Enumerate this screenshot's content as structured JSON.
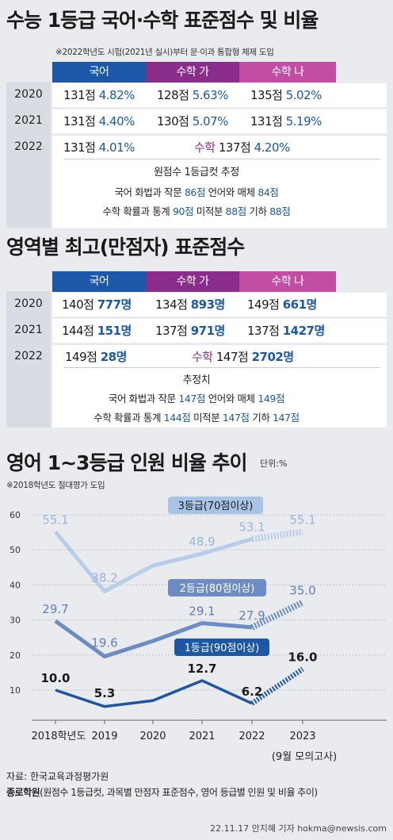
{
  "section1": {
    "title": "수능 1등급 국어·수학 표준점수 및 비율",
    "note": "※2022학년도 시험(2021년 실시)부터 문·이과 통합형 체제 도입",
    "headers": [
      "국어",
      "수학 가",
      "수학 나"
    ],
    "rows": [
      {
        "year": "2020",
        "cells": [
          [
            "131점",
            "4.82%"
          ],
          [
            "128점",
            "5.63%"
          ],
          [
            "135점",
            "5.02%"
          ]
        ]
      },
      {
        "year": "2021",
        "cells": [
          [
            "131점",
            "4.40%"
          ],
          [
            "130점",
            "5.07%"
          ],
          [
            "131점",
            "5.19%"
          ]
        ]
      }
    ],
    "row2022": {
      "year": "2022",
      "kor_score": "131점",
      "kor_pct": "4.01%",
      "math_label": "수학",
      "math_score": "137점",
      "math_pct": "4.20%"
    },
    "estimate": {
      "title": "원점수 1등급컷 추정",
      "line1": {
        "a": "국어 화법과 작문 ",
        "b": "86점",
        "c": " 언어와 매체 ",
        "d": "84점"
      },
      "line2": {
        "a": "수학 확률과 통계 ",
        "b": "90점",
        "c": " 미적분 ",
        "d": "88점",
        "e": " 기하 ",
        "f": "88점"
      }
    }
  },
  "section2": {
    "title": "영역별 최고(만점자) 표준점수",
    "headers": [
      "국어",
      "수학 가",
      "수학 나"
    ],
    "rows": [
      {
        "year": "2020",
        "cells": [
          [
            "140점",
            "777명"
          ],
          [
            "134점",
            "893명"
          ],
          [
            "149점",
            "661명"
          ]
        ]
      },
      {
        "year": "2021",
        "cells": [
          [
            "144점",
            "151명"
          ],
          [
            "137점",
            "971명"
          ],
          [
            "137점",
            "1427명"
          ]
        ]
      }
    ],
    "row2022": {
      "year": "2022",
      "kor_score": "149점",
      "kor_cnt": "28명",
      "math_label": "수학",
      "math_score": "147점",
      "math_cnt": "2702명"
    },
    "estimate": {
      "title": "추정치",
      "line1": {
        "a": "국어 화법과 작문 ",
        "b": "147점",
        "c": " 언어와 매체 ",
        "d": "149점"
      },
      "line2": {
        "a": "수학 확률과 통계 ",
        "b": "144점",
        "c": " 미적분 ",
        "d": "147점",
        "e": " 기하 ",
        "f": "147점"
      }
    }
  },
  "section3": {
    "title": "영어 1~3등급 인원 비율 추이",
    "unit": "단위:%",
    "note": "※2018학년도 절대평가 도입"
  },
  "chart_data": {
    "type": "line",
    "x": [
      "2018학년도",
      "2019",
      "2020",
      "2021",
      "2022",
      "2023"
    ],
    "x_sub": "(9월 모의고사)",
    "yticks": [
      10,
      20,
      30,
      40,
      50,
      60
    ],
    "ylim": [
      0,
      62
    ],
    "series": [
      {
        "name": "3등급(70점이상)",
        "values": [
          55.1,
          38.2,
          45.5,
          48.9,
          53.1,
          55.1
        ],
        "labels": [
          "55.1",
          "38.2",
          "",
          "48.9",
          "53.1",
          "55.1"
        ],
        "color": "#b7cdea",
        "label_color": "#98b5dc"
      },
      {
        "name": "2등급(80점이상)",
        "values": [
          29.7,
          19.6,
          24.0,
          29.1,
          27.9,
          35.0
        ],
        "labels": [
          "29.7",
          "19.6",
          "",
          "29.1",
          "27.9",
          "35.0"
        ],
        "color": "#6d8cc3",
        "label_color": "#5f7fb8"
      },
      {
        "name": "1등급(90점이상)",
        "values": [
          10.0,
          5.3,
          7.0,
          12.7,
          6.2,
          16.0
        ],
        "labels": [
          "10.0",
          "5.3",
          "",
          "12.7",
          "6.2",
          "16.0"
        ],
        "color": "#1d56a3",
        "label_color": "#1a1a1a"
      }
    ],
    "grid": true
  },
  "footer": {
    "source_label": "자료: 한국교육과정평가원",
    "source2_bold": "종로학원",
    "source2_rest": "(원점수 1등급컷, 과목별 만점자 표준점수, 영어 등급별 인원 및 비율 추이)",
    "credit": "22.11.17 안지혜 기자 hokma@newsis.com"
  }
}
